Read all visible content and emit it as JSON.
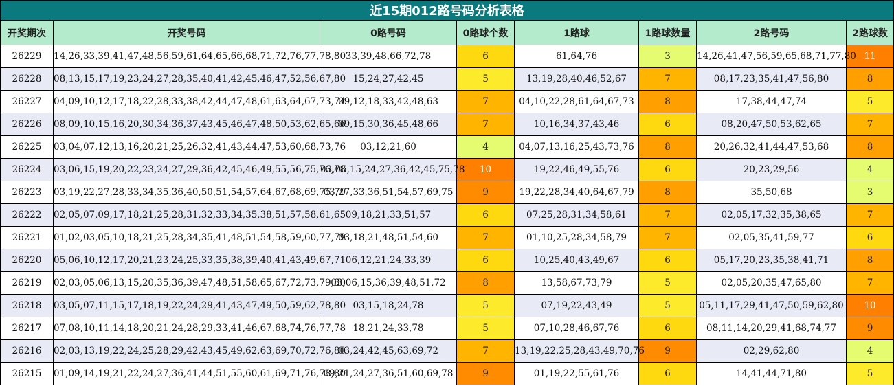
{
  "title": "近15期012路号码分析表格",
  "headers": [
    "开奖期次",
    "开奖号码",
    "0路号码",
    "0路球个数",
    "1路球",
    "1路球数量",
    "2路号码",
    "2路球数"
  ],
  "rows": [
    {
      "issue": "26229",
      "numbers": "14,26,33,39,41,47,48,56,59,61,64,65,66,68,71,72,76,77,78,80",
      "r0": "33,39,48,66,72,78",
      "c0": "6",
      "r1": "61,64,76",
      "c1": "3",
      "r2": "14,26,41,47,56,59,65,68,71,77,80",
      "c2": "11"
    },
    {
      "issue": "26228",
      "numbers": "08,13,15,17,19,23,24,27,28,35,40,41,42,45,46,47,52,56,67,80",
      "r0": "15,24,27,42,45",
      "c0": "5",
      "r1": "13,19,28,40,46,52,67",
      "c1": "7",
      "r2": "08,17,23,35,41,47,56,80",
      "c2": "8"
    },
    {
      "issue": "26227",
      "numbers": "04,09,10,12,17,18,22,28,33,38,42,44,47,48,61,63,64,67,73,74",
      "r0": "09,12,18,33,42,48,63",
      "c0": "7",
      "r1": "04,10,22,28,61,64,67,73",
      "c1": "8",
      "r2": "17,38,44,47,74",
      "c2": "5"
    },
    {
      "issue": "26226",
      "numbers": "08,09,10,15,16,20,30,34,36,37,43,45,46,47,48,50,53,62,65,66",
      "r0": "09,15,30,36,45,48,66",
      "c0": "7",
      "r1": "10,16,34,37,43,46",
      "c1": "6",
      "r2": "08,20,47,50,53,62,65",
      "c2": "7"
    },
    {
      "issue": "26225",
      "numbers": "03,04,07,12,13,16,20,21,25,26,32,41,43,44,47,53,60,68,73,76",
      "r0": "03,12,21,60",
      "c0": "4",
      "r1": "04,07,13,16,25,43,73,76",
      "c1": "8",
      "r2": "20,26,32,41,44,47,53,68",
      "c2": "8"
    },
    {
      "issue": "26224",
      "numbers": "03,06,15,19,20,22,23,24,27,29,36,42,45,46,49,55,56,75,76,78",
      "r0": "03,06,15,24,27,36,42,45,75,78",
      "c0": "10",
      "r1": "19,22,46,49,55,76",
      "c1": "6",
      "r2": "20,23,29,56",
      "c2": "4"
    },
    {
      "issue": "26223",
      "numbers": "03,19,22,27,28,33,34,35,36,40,50,51,54,57,64,67,68,69,75,79",
      "r0": "03,27,33,36,51,54,57,69,75",
      "c0": "9",
      "r1": "19,22,28,34,40,64,67,79",
      "c1": "8",
      "r2": "35,50,68",
      "c2": "3"
    },
    {
      "issue": "26222",
      "numbers": "02,05,07,09,17,18,21,25,28,31,32,33,34,35,38,51,57,58,61,65",
      "r0": "09,18,21,33,51,57",
      "c0": "6",
      "r1": "07,25,28,31,34,58,61",
      "c1": "7",
      "r2": "02,05,17,32,35,38,65",
      "c2": "7"
    },
    {
      "issue": "26221",
      "numbers": "01,02,03,05,10,18,21,25,28,34,35,41,48,51,54,58,59,60,77,79",
      "r0": "03,18,21,48,51,54,60",
      "c0": "7",
      "r1": "01,10,25,28,34,58,79",
      "c1": "7",
      "r2": "02,05,35,41,59,77",
      "c2": "6"
    },
    {
      "issue": "26220",
      "numbers": "05,06,10,12,17,20,21,23,24,25,33,35,38,39,40,41,43,49,67,71",
      "r0": "06,12,21,24,33,39",
      "c0": "6",
      "r1": "10,25,40,43,49,67",
      "c1": "6",
      "r2": "05,17,20,23,35,38,41,71",
      "c2": "8"
    },
    {
      "issue": "26219",
      "numbers": "02,03,05,06,13,15,20,35,36,39,47,48,51,58,65,67,72,73,79,80",
      "r0": "03,06,15,36,39,48,51,72",
      "c0": "8",
      "r1": "13,58,67,73,79",
      "c1": "5",
      "r2": "02,05,20,35,47,65,80",
      "c2": "7"
    },
    {
      "issue": "26218",
      "numbers": "03,05,07,11,15,17,18,19,22,24,29,41,43,47,49,50,59,62,78,80",
      "r0": "03,15,18,24,78",
      "c0": "5",
      "r1": "07,19,22,43,49",
      "c1": "5",
      "r2": "05,11,17,29,41,47,50,59,62,80",
      "c2": "10"
    },
    {
      "issue": "26217",
      "numbers": "07,08,10,11,14,18,20,21,24,28,29,33,41,46,67,68,74,76,77,78",
      "r0": "18,21,24,33,78",
      "c0": "5",
      "r1": "07,10,28,46,67,76",
      "c1": "6",
      "r2": "08,11,14,20,29,41,68,74,77",
      "c2": "9"
    },
    {
      "issue": "26216",
      "numbers": "02,03,13,19,22,24,25,28,29,42,43,45,49,62,63,69,70,72,76,80",
      "r0": "03,24,42,45,63,69,72",
      "c0": "7",
      "r1": "13,19,22,25,28,43,49,70,76",
      "c1": "9",
      "r2": "02,29,62,80",
      "c2": "4"
    },
    {
      "issue": "26215",
      "numbers": "01,09,14,19,21,22,24,27,36,41,44,51,55,60,61,69,71,76,78,80",
      "r0": "09,21,24,27,36,51,60,69,78",
      "c0": "9",
      "r1": "01,19,22,55,61,76",
      "c1": "6",
      "r2": "14,41,44,71,80",
      "c2": "5"
    }
  ]
}
